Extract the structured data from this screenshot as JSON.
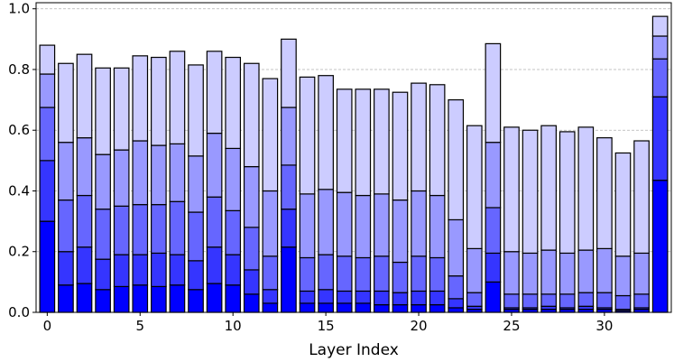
{
  "chart_data": {
    "type": "bar",
    "stacked": true,
    "xlabel": "Layer Index",
    "ylabel": "",
    "title": "",
    "ylim": [
      0,
      1.02
    ],
    "xlim": [
      -0.6,
      33.6
    ],
    "grid": "horizontal dashed",
    "x_ticks": [
      0,
      5,
      10,
      15,
      20,
      25,
      30
    ],
    "y_ticks": [
      0.0,
      0.2,
      0.4,
      0.6,
      0.8,
      1.0
    ],
    "x": [
      0,
      1,
      2,
      3,
      4,
      5,
      6,
      7,
      8,
      9,
      10,
      11,
      12,
      13,
      14,
      15,
      16,
      17,
      18,
      19,
      20,
      21,
      22,
      23,
      24,
      25,
      26,
      27,
      28,
      29,
      30,
      31,
      32,
      33
    ],
    "stack_colors": [
      "#0000ff",
      "#3535ff",
      "#6666ff",
      "#9999ff",
      "#ccccff"
    ],
    "series": [
      {
        "color": "#0000ff",
        "cumulative": [
          0.3,
          0.09,
          0.095,
          0.075,
          0.085,
          0.09,
          0.085,
          0.09,
          0.075,
          0.095,
          0.09,
          0.06,
          0.03,
          0.215,
          0.03,
          0.03,
          0.03,
          0.03,
          0.025,
          0.025,
          0.025,
          0.025,
          0.015,
          0.01,
          0.1,
          0.01,
          0.01,
          0.01,
          0.01,
          0.01,
          0.01,
          0.005,
          0.01,
          0.435
        ]
      },
      {
        "color": "#3535ff",
        "cumulative": [
          0.5,
          0.2,
          0.215,
          0.175,
          0.19,
          0.19,
          0.195,
          0.19,
          0.17,
          0.215,
          0.19,
          0.14,
          0.075,
          0.34,
          0.07,
          0.075,
          0.07,
          0.07,
          0.07,
          0.065,
          0.07,
          0.07,
          0.045,
          0.02,
          0.195,
          0.015,
          0.015,
          0.02,
          0.015,
          0.02,
          0.015,
          0.01,
          0.015,
          0.71
        ]
      },
      {
        "color": "#6666ff",
        "cumulative": [
          0.675,
          0.37,
          0.385,
          0.34,
          0.35,
          0.355,
          0.355,
          0.365,
          0.33,
          0.38,
          0.335,
          0.28,
          0.185,
          0.485,
          0.18,
          0.19,
          0.185,
          0.18,
          0.185,
          0.165,
          0.185,
          0.18,
          0.12,
          0.065,
          0.345,
          0.06,
          0.06,
          0.06,
          0.06,
          0.065,
          0.065,
          0.055,
          0.06,
          0.835
        ]
      },
      {
        "color": "#9999ff",
        "cumulative": [
          0.785,
          0.56,
          0.575,
          0.52,
          0.535,
          0.565,
          0.55,
          0.555,
          0.515,
          0.59,
          0.54,
          0.48,
          0.4,
          0.675,
          0.39,
          0.405,
          0.395,
          0.385,
          0.39,
          0.37,
          0.4,
          0.385,
          0.305,
          0.21,
          0.56,
          0.2,
          0.195,
          0.205,
          0.195,
          0.205,
          0.21,
          0.185,
          0.195,
          0.91
        ]
      },
      {
        "color": "#ccccff",
        "cumulative": [
          0.88,
          0.82,
          0.85,
          0.805,
          0.805,
          0.845,
          0.84,
          0.86,
          0.815,
          0.86,
          0.84,
          0.82,
          0.77,
          0.9,
          0.775,
          0.78,
          0.735,
          0.735,
          0.735,
          0.725,
          0.755,
          0.75,
          0.7,
          0.615,
          0.885,
          0.61,
          0.6,
          0.615,
          0.595,
          0.61,
          0.575,
          0.525,
          0.565,
          0.975
        ]
      }
    ]
  }
}
